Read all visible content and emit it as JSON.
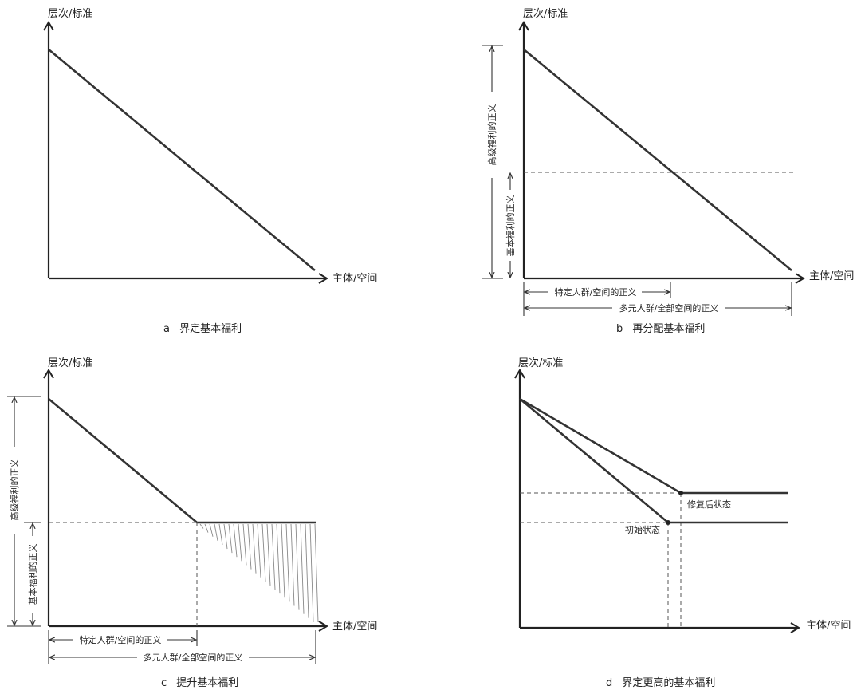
{
  "axis_y_label": "层次/标准",
  "axis_x_label": "主体/空间",
  "panels": {
    "a": {
      "caption_letter": "a",
      "caption_text": "界定基本福利"
    },
    "b": {
      "caption_letter": "b",
      "caption_text": "再分配基本福利",
      "high_welfare": "高级福利的正义",
      "basic_welfare": "基本福利的正义",
      "specific_group": "特定人群/空间的正义",
      "all_groups": "多元人群/全部空间的正义"
    },
    "c": {
      "caption_letter": "c",
      "caption_text": "提升基本福利",
      "high_welfare": "高级福利的正义",
      "basic_welfare": "基本福利的正义",
      "specific_group": "特定人群/空间的正义",
      "all_groups": "多元人群/全部空间的正义"
    },
    "d": {
      "caption_letter": "d",
      "caption_text": "界定更高的基本福利",
      "repaired_state": "修复后状态",
      "initial_state": "初始状态"
    }
  }
}
